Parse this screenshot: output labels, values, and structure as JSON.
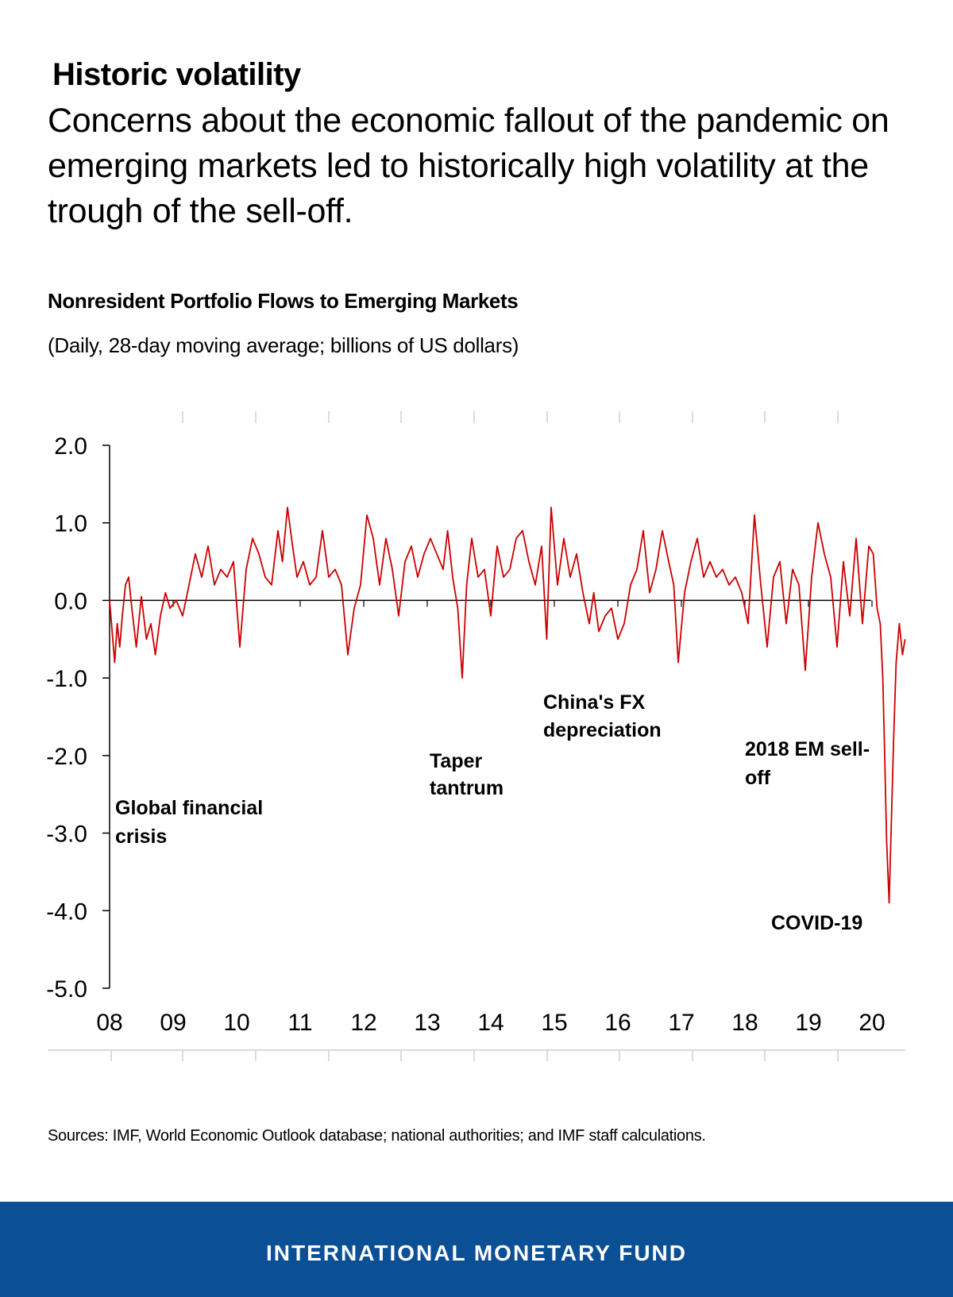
{
  "headline": "Historic volatility",
  "lede": "Concerns about the economic fallout of the pandemic on emerging markets led to historically high volatility at the trough of the sell-off.",
  "source": "Sources: IMF, World Economic Outlook database; national authorities; and IMF staff calculations.",
  "footer": {
    "org_name": "INTERNATIONAL MONETARY FUND",
    "background": "#0b4f94"
  },
  "chart_data": {
    "type": "line",
    "title": "Nonresident Portfolio Flows to Emerging Markets",
    "subtitle": "(Daily, 28-day moving average; billions of US dollars)",
    "xlabel": "",
    "ylabel": "",
    "xlim": [
      2008.0,
      2020.55
    ],
    "ylim": [
      -5.0,
      2.0
    ],
    "ytick_labels": [
      "2.0",
      "1.0",
      "0.0",
      "-1.0",
      "-2.0",
      "-3.0",
      "-4.0",
      "-5.0"
    ],
    "ytick_values": [
      2.0,
      1.0,
      0.0,
      -1.0,
      -2.0,
      -3.0,
      -4.0,
      -5.0
    ],
    "xtick_labels": [
      "08",
      "09",
      "10",
      "11",
      "12",
      "13",
      "14",
      "15",
      "16",
      "17",
      "18",
      "19",
      "20"
    ],
    "xtick_values": [
      2008,
      2009,
      2010,
      2011,
      2012,
      2013,
      2014,
      2015,
      2016,
      2017,
      2018,
      2019,
      2020
    ],
    "grid": false,
    "zero_line": true,
    "series": [
      {
        "color": "#cc0000",
        "x": [
          2008.0,
          2008.04,
          2008.08,
          2008.12,
          2008.16,
          2008.2,
          2008.25,
          2008.3,
          2008.35,
          2008.42,
          2008.5,
          2008.58,
          2008.65,
          2008.72,
          2008.8,
          2008.88,
          2008.95,
          2009.05,
          2009.15,
          2009.25,
          2009.35,
          2009.45,
          2009.55,
          2009.65,
          2009.75,
          2009.85,
          2009.95,
          2010.05,
          2010.15,
          2010.25,
          2010.35,
          2010.45,
          2010.55,
          2010.65,
          2010.72,
          2010.8,
          2010.88,
          2010.95,
          2011.05,
          2011.15,
          2011.25,
          2011.35,
          2011.45,
          2011.55,
          2011.65,
          2011.75,
          2011.85,
          2011.95,
          2012.05,
          2012.15,
          2012.25,
          2012.35,
          2012.45,
          2012.55,
          2012.65,
          2012.75,
          2012.85,
          2012.95,
          2013.05,
          2013.15,
          2013.25,
          2013.32,
          2013.4,
          2013.48,
          2013.55,
          2013.62,
          2013.7,
          2013.8,
          2013.9,
          2014.0,
          2014.1,
          2014.2,
          2014.3,
          2014.4,
          2014.5,
          2014.6,
          2014.7,
          2014.8,
          2014.88,
          2014.95,
          2015.05,
          2015.15,
          2015.25,
          2015.35,
          2015.45,
          2015.55,
          2015.62,
          2015.7,
          2015.8,
          2015.9,
          2016.0,
          2016.1,
          2016.2,
          2016.3,
          2016.4,
          2016.5,
          2016.6,
          2016.7,
          2016.8,
          2016.88,
          2016.95,
          2017.05,
          2017.15,
          2017.25,
          2017.35,
          2017.45,
          2017.55,
          2017.65,
          2017.75,
          2017.85,
          2017.95,
          2018.05,
          2018.15,
          2018.25,
          2018.35,
          2018.45,
          2018.55,
          2018.65,
          2018.75,
          2018.85,
          2018.95,
          2019.05,
          2019.15,
          2019.25,
          2019.35,
          2019.45,
          2019.55,
          2019.65,
          2019.75,
          2019.85,
          2019.95,
          2020.02,
          2020.08,
          2020.13,
          2020.17,
          2020.2,
          2020.23,
          2020.27,
          2020.3,
          2020.34,
          2020.38,
          2020.43,
          2020.48,
          2020.52
        ],
        "values": [
          0.0,
          -0.4,
          -0.8,
          -0.3,
          -0.6,
          -0.2,
          0.2,
          0.3,
          -0.1,
          -0.6,
          0.05,
          -0.5,
          -0.3,
          -0.7,
          -0.2,
          0.1,
          -0.1,
          0.0,
          -0.2,
          0.2,
          0.6,
          0.3,
          0.7,
          0.2,
          0.4,
          0.3,
          0.5,
          -0.6,
          0.4,
          0.8,
          0.6,
          0.3,
          0.2,
          0.9,
          0.5,
          1.2,
          0.7,
          0.3,
          0.5,
          0.2,
          0.3,
          0.9,
          0.3,
          0.4,
          0.2,
          -0.7,
          -0.1,
          0.2,
          1.1,
          0.8,
          0.2,
          0.8,
          0.4,
          -0.2,
          0.5,
          0.7,
          0.3,
          0.6,
          0.8,
          0.6,
          0.4,
          0.9,
          0.3,
          -0.1,
          -1.0,
          0.2,
          0.8,
          0.3,
          0.4,
          -0.2,
          0.7,
          0.3,
          0.4,
          0.8,
          0.9,
          0.5,
          0.2,
          0.7,
          -0.5,
          1.2,
          0.2,
          0.8,
          0.3,
          0.6,
          0.1,
          -0.3,
          0.1,
          -0.4,
          -0.2,
          -0.1,
          -0.5,
          -0.3,
          0.2,
          0.4,
          0.9,
          0.1,
          0.4,
          0.9,
          0.5,
          0.2,
          -0.8,
          0.1,
          0.5,
          0.8,
          0.3,
          0.5,
          0.3,
          0.4,
          0.2,
          0.3,
          0.1,
          -0.3,
          1.1,
          0.2,
          -0.6,
          0.3,
          0.5,
          -0.3,
          0.4,
          0.2,
          -0.9,
          0.3,
          1.0,
          0.6,
          0.3,
          -0.6,
          0.5,
          -0.2,
          0.8,
          -0.3,
          0.7,
          0.6,
          -0.1,
          -0.3,
          -1.0,
          -2.0,
          -3.1,
          -3.9,
          -3.0,
          -1.8,
          -0.8,
          -0.3,
          -0.7,
          -0.5
        ]
      }
    ],
    "annotations": [
      {
        "label": "Global financial crisis",
        "line1": "Global financial",
        "line2": "crisis"
      },
      {
        "label": "Taper tantrum",
        "line1": "Taper",
        "line2": "tantrum"
      },
      {
        "label": "China's FX depreciation",
        "line1": "China's FX",
        "line2": "depreciation"
      },
      {
        "label": "2018 EM sell-off",
        "line1": "2018 EM sell-",
        "line2": "off"
      },
      {
        "label": "COVID-19",
        "line1": "COVID-19",
        "line2": ""
      }
    ]
  }
}
